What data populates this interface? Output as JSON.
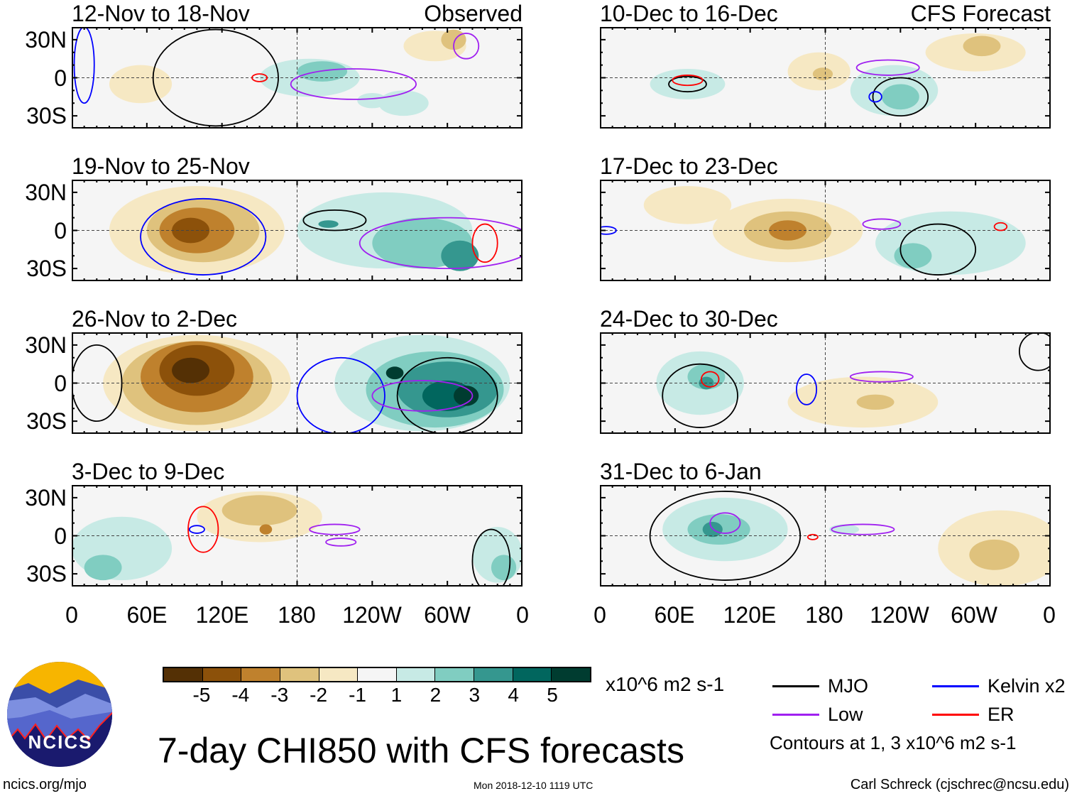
{
  "colors": {
    "levels": [
      -5,
      -4,
      -3,
      -2,
      -1,
      0,
      1,
      2,
      3,
      4,
      5
    ],
    "fills": [
      "#543005",
      "#8c510a",
      "#bf812d",
      "#dfc27d",
      "#f6e8c3",
      "#f5f5f5",
      "#c7eae5",
      "#80cdc1",
      "#35978f",
      "#01665e",
      "#003c30"
    ],
    "contour": {
      "MJO": "#000000",
      "Kelvin": "#0000ff",
      "Low": "#a020f0",
      "ER": "#ff0000"
    }
  },
  "column_labels": {
    "observed": "Observed",
    "forecast": "CFS Forecast"
  },
  "lat_labels": [
    "30N",
    "0",
    "30S"
  ],
  "lon_labels": [
    "0",
    "60E",
    "120E",
    "180",
    "120W",
    "60W",
    "0"
  ],
  "chart_data": {
    "type": "map",
    "lon_range": [
      0,
      360
    ],
    "lat_range": [
      -40,
      40
    ],
    "panels": [
      {
        "title": "12-Nov to 18-Nov",
        "col": 0,
        "row": 0,
        "anoms": [
          [
            55,
            -5,
            25,
            15,
            -1
          ],
          [
            190,
            0,
            40,
            15,
            1
          ],
          [
            200,
            5,
            20,
            8,
            2
          ],
          [
            290,
            25,
            25,
            12,
            -1
          ],
          [
            305,
            30,
            10,
            8,
            -2
          ],
          [
            265,
            -20,
            20,
            10,
            1
          ],
          [
            240,
            -18,
            12,
            6,
            1
          ]
        ],
        "contours": [
          [
            "MJO",
            115,
            0,
            50,
            38
          ],
          [
            "Low",
            225,
            -5,
            50,
            12
          ],
          [
            "Low",
            315,
            25,
            10,
            10
          ],
          [
            "ER",
            150,
            0,
            6,
            3
          ],
          [
            "Kelvin",
            10,
            10,
            8,
            30
          ]
        ]
      },
      {
        "title": "19-Nov to 25-Nov",
        "col": 0,
        "row": 1,
        "anoms": [
          [
            100,
            0,
            70,
            35,
            -1
          ],
          [
            105,
            0,
            45,
            25,
            -2
          ],
          [
            100,
            0,
            30,
            18,
            -3
          ],
          [
            95,
            0,
            15,
            10,
            -4
          ],
          [
            250,
            0,
            70,
            30,
            1
          ],
          [
            280,
            -10,
            40,
            20,
            2
          ],
          [
            310,
            -20,
            15,
            12,
            3
          ],
          [
            205,
            5,
            8,
            3,
            3
          ]
        ],
        "contours": [
          [
            "MJO",
            210,
            8,
            25,
            8
          ],
          [
            "Kelvin",
            105,
            -5,
            50,
            30
          ],
          [
            "Low",
            300,
            -10,
            70,
            20
          ],
          [
            "ER",
            330,
            -10,
            10,
            15
          ]
        ]
      },
      {
        "title": "26-Nov to 2-Dec",
        "col": 0,
        "row": 2,
        "anoms": [
          [
            100,
            0,
            75,
            38,
            -1
          ],
          [
            100,
            0,
            60,
            33,
            -2
          ],
          [
            100,
            5,
            45,
            28,
            -3
          ],
          [
            100,
            10,
            30,
            20,
            -4
          ],
          [
            95,
            10,
            15,
            10,
            -5
          ],
          [
            280,
            0,
            70,
            38,
            1
          ],
          [
            290,
            -5,
            55,
            30,
            2
          ],
          [
            300,
            -5,
            40,
            22,
            3
          ],
          [
            300,
            -10,
            20,
            12,
            4
          ],
          [
            315,
            -10,
            10,
            8,
            5
          ],
          [
            258,
            8,
            7,
            5,
            5
          ]
        ],
        "contours": [
          [
            "MJO",
            300,
            -10,
            40,
            30
          ],
          [
            "Kelvin",
            215,
            -10,
            35,
            30
          ],
          [
            "Low",
            280,
            -10,
            40,
            12
          ],
          [
            "MJO",
            20,
            0,
            20,
            30
          ]
        ]
      },
      {
        "title": "3-Dec to 9-Dec",
        "col": 0,
        "row": 3,
        "anoms": [
          [
            40,
            -10,
            40,
            25,
            1
          ],
          [
            25,
            -25,
            15,
            10,
            2
          ],
          [
            150,
            15,
            50,
            20,
            -1
          ],
          [
            150,
            20,
            30,
            12,
            -2
          ],
          [
            155,
            5,
            5,
            4,
            -3
          ],
          [
            340,
            -15,
            20,
            22,
            1
          ],
          [
            345,
            -25,
            10,
            10,
            2
          ]
        ],
        "contours": [
          [
            "ER",
            105,
            5,
            12,
            18
          ],
          [
            "Kelvin",
            100,
            5,
            6,
            3
          ],
          [
            "Low",
            210,
            5,
            20,
            4
          ],
          [
            "Low",
            215,
            -5,
            12,
            3
          ],
          [
            "MJO",
            335,
            -20,
            15,
            25
          ]
        ]
      },
      {
        "title": "10-Dec to 16-Dec",
        "col": 1,
        "row": 0,
        "anoms": [
          [
            300,
            20,
            40,
            15,
            -1
          ],
          [
            305,
            25,
            15,
            8,
            -2
          ],
          [
            175,
            5,
            25,
            15,
            -1
          ],
          [
            178,
            3,
            8,
            5,
            -2
          ],
          [
            70,
            -5,
            30,
            12,
            1
          ],
          [
            235,
            -10,
            35,
            20,
            1
          ],
          [
            240,
            -15,
            15,
            10,
            2
          ]
        ],
        "contours": [
          [
            "MJO",
            70,
            -5,
            15,
            6
          ],
          [
            "ER",
            70,
            -2,
            12,
            4
          ],
          [
            "MJO",
            240,
            -15,
            22,
            15
          ],
          [
            "Low",
            230,
            8,
            25,
            6
          ],
          [
            "Kelvin",
            220,
            -15,
            5,
            4
          ]
        ]
      },
      {
        "title": "17-Dec to 23-Dec",
        "col": 1,
        "row": 1,
        "anoms": [
          [
            150,
            0,
            60,
            25,
            -1
          ],
          [
            150,
            0,
            35,
            15,
            -2
          ],
          [
            150,
            0,
            15,
            8,
            -3
          ],
          [
            70,
            20,
            35,
            15,
            -1
          ],
          [
            280,
            -10,
            60,
            25,
            1
          ],
          [
            250,
            -20,
            15,
            10,
            2
          ]
        ],
        "contours": [
          [
            "MJO",
            270,
            -15,
            30,
            20
          ],
          [
            "Low",
            225,
            5,
            15,
            4
          ],
          [
            "ER",
            320,
            3,
            5,
            3
          ],
          [
            "Kelvin",
            5,
            0,
            8,
            3
          ]
        ]
      },
      {
        "title": "24-Dec to 30-Dec",
        "col": 1,
        "row": 2,
        "anoms": [
          [
            80,
            0,
            35,
            25,
            1
          ],
          [
            85,
            5,
            15,
            10,
            2
          ],
          [
            85,
            0,
            6,
            5,
            3
          ],
          [
            210,
            -15,
            60,
            20,
            -1
          ],
          [
            220,
            -15,
            15,
            6,
            -2
          ]
        ],
        "contours": [
          [
            "MJO",
            80,
            -10,
            30,
            25
          ],
          [
            "ER",
            88,
            3,
            7,
            6
          ],
          [
            "Low",
            225,
            5,
            25,
            4
          ],
          [
            "Kelvin",
            165,
            -5,
            8,
            12
          ],
          [
            "MJO",
            350,
            25,
            15,
            15
          ]
        ]
      },
      {
        "title": "31-Dec to 6-Jan",
        "col": 1,
        "row": 3,
        "anoms": [
          [
            100,
            5,
            50,
            25,
            1
          ],
          [
            95,
            5,
            25,
            12,
            2
          ],
          [
            90,
            5,
            8,
            6,
            3
          ],
          [
            320,
            -10,
            50,
            30,
            -1
          ],
          [
            315,
            -15,
            20,
            12,
            -2
          ],
          [
            195,
            5,
            12,
            4,
            1
          ]
        ],
        "contours": [
          [
            "MJO",
            100,
            0,
            60,
            35
          ],
          [
            "Low",
            100,
            10,
            12,
            8
          ],
          [
            "Low",
            210,
            5,
            25,
            4
          ],
          [
            "ER",
            170,
            -1,
            4,
            2
          ]
        ]
      }
    ]
  },
  "colorbar": {
    "labels": [
      "-5",
      "-4",
      "-3",
      "-2",
      "-1",
      "1",
      "2",
      "3",
      "4",
      "5"
    ],
    "units": "x10^6 m2 s-1"
  },
  "legend": {
    "mjo": "MJO",
    "kelvin": "Kelvin x2",
    "low": "Low",
    "er": "ER",
    "note": "Contours at 1, 3 x10^6 m2 s-1"
  },
  "title": "7-day CHI850 with CFS forecasts",
  "logo": {
    "text": "NCICS"
  },
  "footer": {
    "url": "ncics.org/mjo",
    "timestamp": "Mon 2018-12-10 1119 UTC",
    "author": "Carl Schreck (cjschrec@ncsu.edu)"
  }
}
